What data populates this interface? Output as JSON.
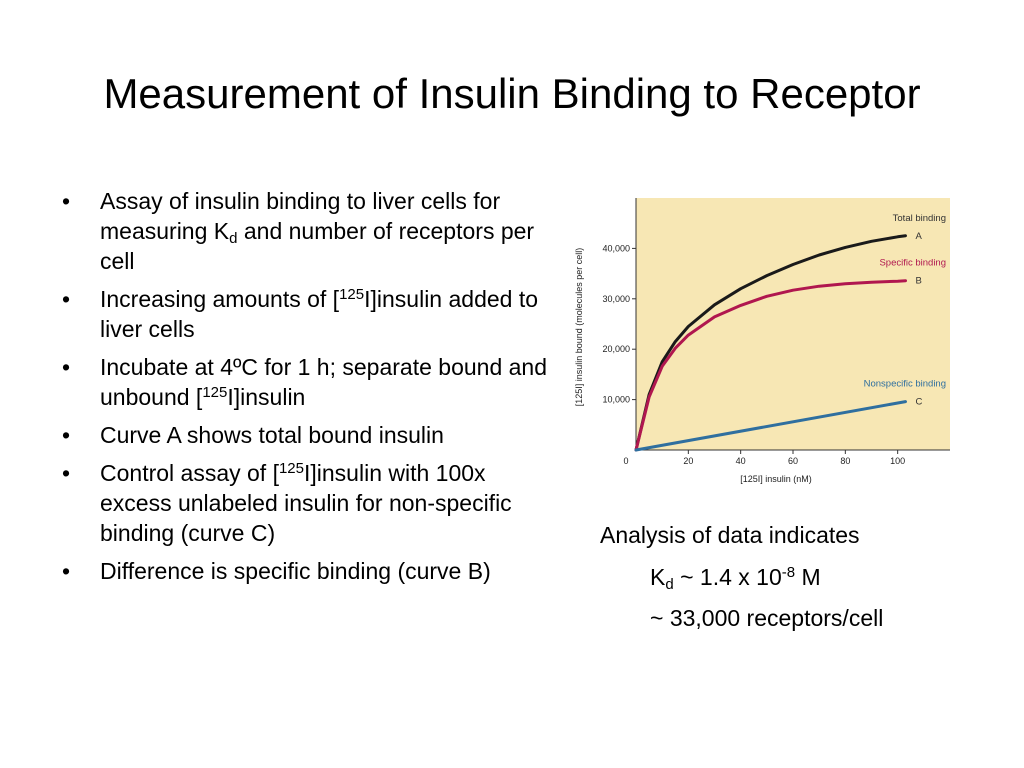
{
  "title": "Measurement of Insulin Binding to Receptor",
  "bullets": [
    {
      "a": "Assay of insulin binding to liver cells for measuring K",
      "sub": "d",
      "b": " and number of receptors per cell"
    },
    {
      "a": "Increasing amounts of [",
      "sup": "125",
      "b": "I]insulin added to liver cells"
    },
    {
      "a": "Incubate at 4ºC for 1 h; separate bound and unbound [",
      "sup": "125",
      "b": "I]insulin"
    },
    {
      "a": "Curve A shows total bound insulin"
    },
    {
      "a": "Control assay of [",
      "sup": "125",
      "b": "I]insulin with 100x excess unlabeled insulin for non-specific binding (curve C)"
    },
    {
      "a": "Difference is specific binding (curve B)"
    }
  ],
  "bullet_char": "•",
  "analysis": {
    "line1": "Analysis of data indicates",
    "kd_a": "K",
    "kd_sub": "d",
    "kd_b": " ~ 1.4 x 10",
    "kd_sup": "-8",
    "kd_c": " M",
    "receptors": "~ 33,000 receptors/cell"
  },
  "chart_data": {
    "type": "line",
    "xlabel": "[125I] insulin (nM)",
    "ylabel": "[125I] insulin bound (molecules per cell)",
    "xlim": [
      0,
      120
    ],
    "ylim": [
      0,
      50000
    ],
    "x_ticks": [
      "0",
      "20",
      "40",
      "60",
      "80",
      "100"
    ],
    "y_ticks": [
      "10,000",
      "20,000",
      "30,000",
      "40,000"
    ],
    "background": "#f7e7b4",
    "series": [
      {
        "name": "Total binding",
        "letter": "A",
        "color": "#1a1a1a",
        "x": [
          0,
          5,
          10,
          15,
          20,
          30,
          40,
          50,
          60,
          70,
          80,
          90,
          100,
          103
        ],
        "y": [
          0,
          11000,
          17500,
          21500,
          24500,
          28800,
          32000,
          34600,
          36800,
          38700,
          40200,
          41400,
          42300,
          42500
        ]
      },
      {
        "name": "Specific binding",
        "letter": "B",
        "color": "#b0174f",
        "x": [
          0,
          5,
          10,
          15,
          20,
          30,
          40,
          50,
          60,
          70,
          80,
          90,
          100,
          103
        ],
        "y": [
          0,
          10500,
          16600,
          20200,
          22800,
          26400,
          28700,
          30500,
          31700,
          32500,
          33000,
          33300,
          33500,
          33600
        ]
      },
      {
        "name": "Nonspecific binding",
        "letter": "C",
        "color": "#2f6f9f",
        "x": [
          0,
          103
        ],
        "y": [
          0,
          9600
        ]
      }
    ]
  }
}
